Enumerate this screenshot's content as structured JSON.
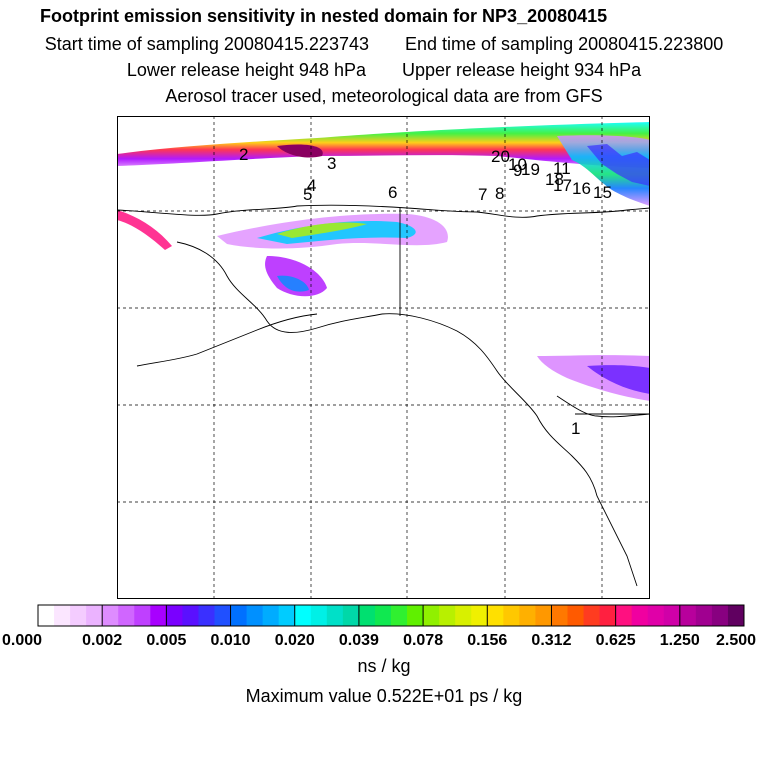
{
  "header": {
    "title": "Footprint emission sensitivity in nested domain for NP3_20080415",
    "start_time": "Start time of sampling 20080415.223743",
    "end_time": "End time of sampling 20080415.223800",
    "lower_height": "Lower release height  948 hPa",
    "upper_height": "Upper release height  934 hPa",
    "tracer_info": "Aerosol tracer used, meteorological data are from GFS"
  },
  "map": {
    "trajectory_labels": [
      {
        "label": "2"
      },
      {
        "label": "3"
      },
      {
        "label": "4"
      },
      {
        "label": "5"
      },
      {
        "label": "6"
      },
      {
        "label": "7"
      },
      {
        "label": "8"
      },
      {
        "label": "20"
      },
      {
        "label": "10"
      },
      {
        "label": "9"
      },
      {
        "label": "19"
      },
      {
        "label": "11"
      },
      {
        "label": "18"
      },
      {
        "label": "17"
      },
      {
        "label": "16"
      },
      {
        "label": "15"
      }
    ],
    "marker_label": "1"
  },
  "colorbar": {
    "tick_labels": [
      "0.000",
      "0.002",
      "0.005",
      "0.010",
      "0.020",
      "0.039",
      "0.078",
      "0.156",
      "0.312",
      "0.625",
      "1.250",
      "2.500"
    ],
    "colors": [
      "#ffffff",
      "#fbe6ff",
      "#f4ccff",
      "#ebb3ff",
      "#de8cff",
      "#d066ff",
      "#bf40ff",
      "#a800ff",
      "#7a00ff",
      "#5a10ff",
      "#3a30ff",
      "#2050ff",
      "#0070ff",
      "#0090ff",
      "#00acff",
      "#00ccff",
      "#00ffff",
      "#00f0e6",
      "#00e0c8",
      "#00d8a8",
      "#00e070",
      "#10e850",
      "#30f030",
      "#60f000",
      "#90f000",
      "#b8f000",
      "#d8f000",
      "#f0f000",
      "#ffe000",
      "#ffc800",
      "#ffb000",
      "#ff9800",
      "#ff7800",
      "#ff5a00",
      "#ff3c20",
      "#ff2040",
      "#ff1080",
      "#f000a0",
      "#e000a8",
      "#d000a8",
      "#b8009c",
      "#a00090",
      "#880080",
      "#600060"
    ]
  },
  "unit_label": "ns / kg",
  "max_value_label": "Maximum value  0.522E+01 ps / kg"
}
